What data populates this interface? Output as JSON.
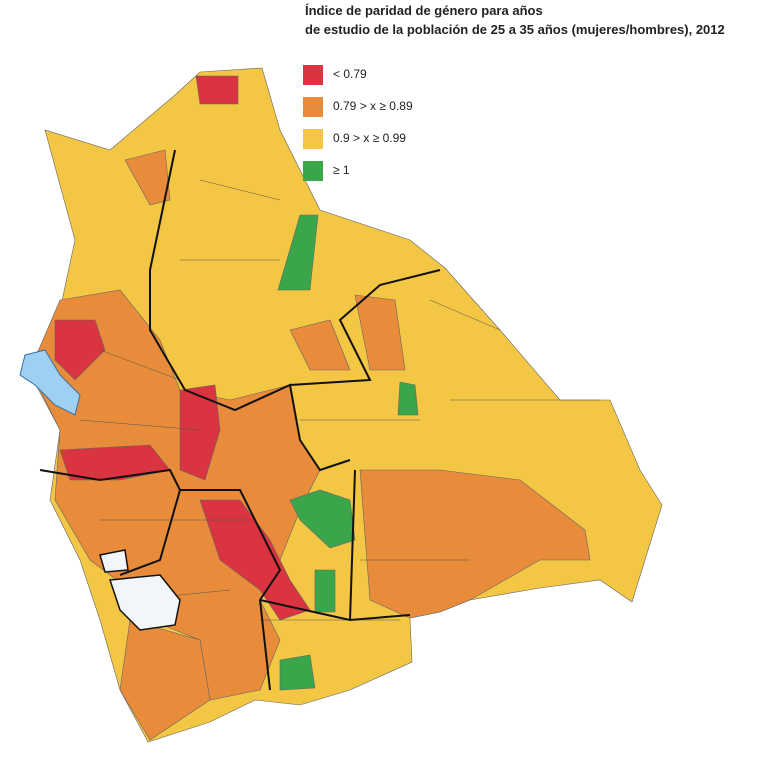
{
  "title": {
    "line1": "Índice de paridad de género para años",
    "line2": "de estudio de la población de 25 a 35 años (mujeres/hombres), 2012"
  },
  "legend": {
    "items": [
      {
        "label": "< 0.79",
        "color": "#d9343f"
      },
      {
        "label": "0.79 > x ≥ 0.89",
        "color": "#e88b3a"
      },
      {
        "label": "0.9 > x ≥ 0.99",
        "color": "#f3c643"
      },
      {
        "label": "≥ 1",
        "color": "#3ba54a"
      }
    ]
  }
}
